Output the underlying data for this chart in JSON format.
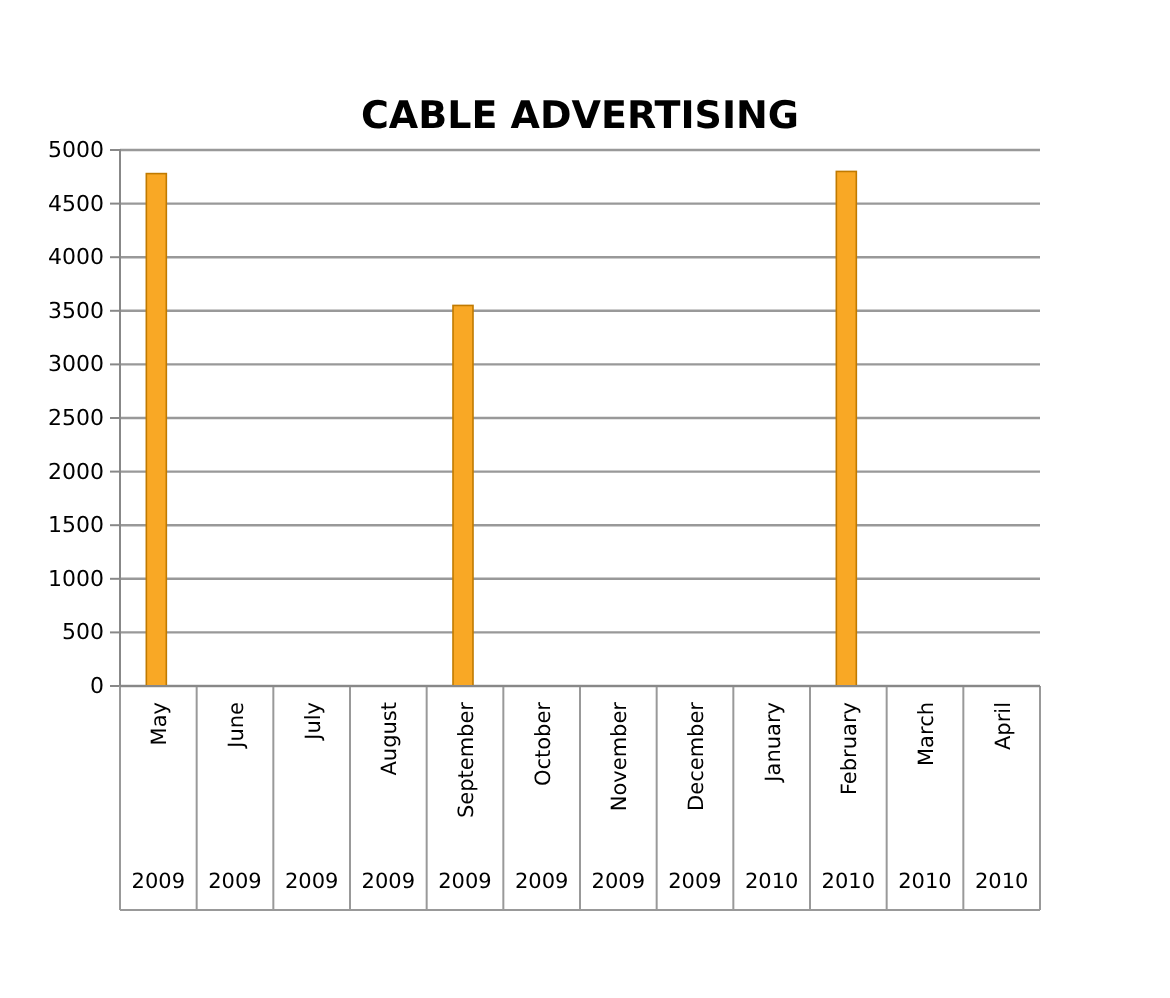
{
  "chart_data": {
    "type": "bar",
    "title": "CABLE ADVERTISING",
    "categories": [
      "May 2009",
      "June 2009",
      "July 2009",
      "August 2009",
      "September 2009",
      "October 2009",
      "November 2009",
      "December 2009",
      "January 2010",
      "February 2010",
      "March 2010",
      "April 2010"
    ],
    "values": [
      4780,
      0,
      0,
      0,
      3550,
      0,
      0,
      0,
      0,
      4800,
      0,
      0
    ],
    "color": "#f9a825",
    "ylim": [
      0,
      5000
    ],
    "yticks": [
      0,
      500,
      1000,
      1500,
      2000,
      2500,
      3000,
      3500,
      4000,
      4500,
      5000
    ],
    "grid": "y"
  }
}
